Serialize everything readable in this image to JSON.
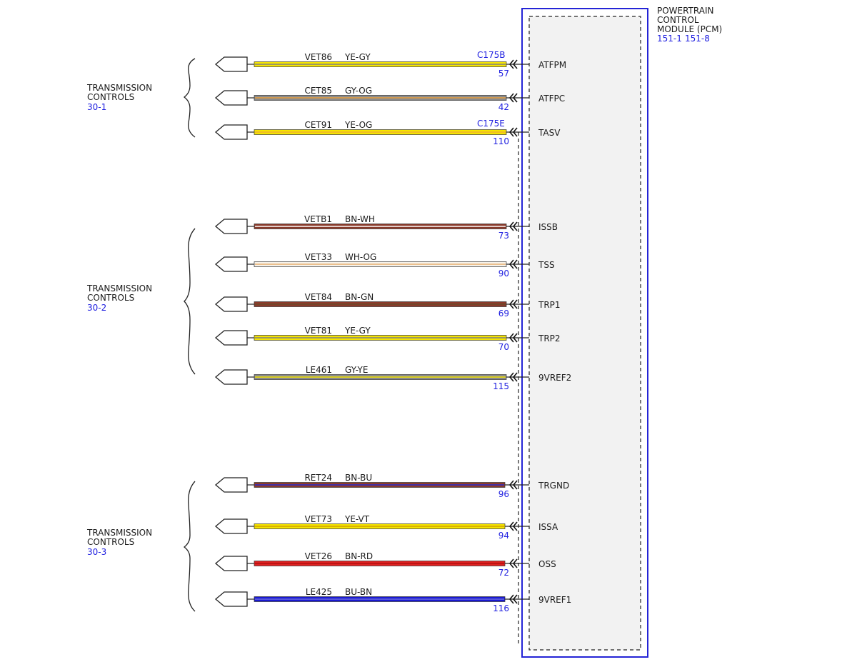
{
  "module": {
    "title_lines": [
      "POWERTRAIN",
      "CONTROL",
      "MODULE (PCM)"
    ],
    "refs": [
      "151-1",
      "151-8"
    ],
    "colors": {
      "outline": "#2424d6",
      "fill": "#f2f2f2"
    }
  },
  "groups": [
    {
      "name_lines": [
        "TRANSMISSION",
        "CONTROLS"
      ],
      "ref": "30-1"
    },
    {
      "name_lines": [
        "TRANSMISSION",
        "CONTROLS"
      ],
      "ref": "30-2"
    },
    {
      "name_lines": [
        "TRANSMISSION",
        "CONTROLS"
      ],
      "ref": "30-3"
    }
  ],
  "connectors": [
    {
      "label": "C175B"
    },
    {
      "label": "C175E"
    }
  ],
  "wires": [
    {
      "circuit": "VET86",
      "color_code": "YE-GY",
      "pin": "57",
      "signal": "ATFPM",
      "base": "#f5e400",
      "stripe": "#808080"
    },
    {
      "circuit": "CET85",
      "color_code": "GY-OG",
      "pin": "42",
      "signal": "ATFPC",
      "base": "#8a8a8a",
      "stripe": "#e8a040"
    },
    {
      "circuit": "CET91",
      "color_code": "YE-OG",
      "pin": "110",
      "signal": "TASV",
      "base": "#f5e400",
      "stripe": "#f0b030"
    },
    {
      "circuit": "VETB1",
      "color_code": "BN-WH",
      "pin": "73",
      "signal": "ISSB",
      "base": "#8b3a2a",
      "stripe": "#ffffff"
    },
    {
      "circuit": "VET33",
      "color_code": "WH-OG",
      "pin": "90",
      "signal": "TSS",
      "base": "#f6f2ea",
      "stripe": "#e8b070"
    },
    {
      "circuit": "VET84",
      "color_code": "BN-GN",
      "pin": "69",
      "signal": "TRP1",
      "base": "#8b3a2a",
      "stripe": "#6a4a2a"
    },
    {
      "circuit": "VET81",
      "color_code": "YE-GY",
      "pin": "70",
      "signal": "TRP2",
      "base": "#f5e400",
      "stripe": "#808080"
    },
    {
      "circuit": "LE461",
      "color_code": "GY-YE",
      "pin": "115",
      "signal": "9VREF2",
      "base": "#8a8a8a",
      "stripe": "#f5e400"
    },
    {
      "circuit": "RET24",
      "color_code": "BN-BU",
      "pin": "96",
      "signal": "TRGND",
      "base": "#8b3a2a",
      "stripe": "#2a2ad0"
    },
    {
      "circuit": "VET73",
      "color_code": "YE-VT",
      "pin": "94",
      "signal": "ISSA",
      "base": "#f5e400",
      "stripe": "#d0a000"
    },
    {
      "circuit": "VET26",
      "color_code": "BN-RD",
      "pin": "72",
      "signal": "OSS",
      "base": "#e02020",
      "stripe": "#b01010"
    },
    {
      "circuit": "LE425",
      "color_code": "BU-BN",
      "pin": "116",
      "signal": "9VREF1",
      "base": "#1a1ad0",
      "stripe": "#6a6ae0"
    }
  ]
}
